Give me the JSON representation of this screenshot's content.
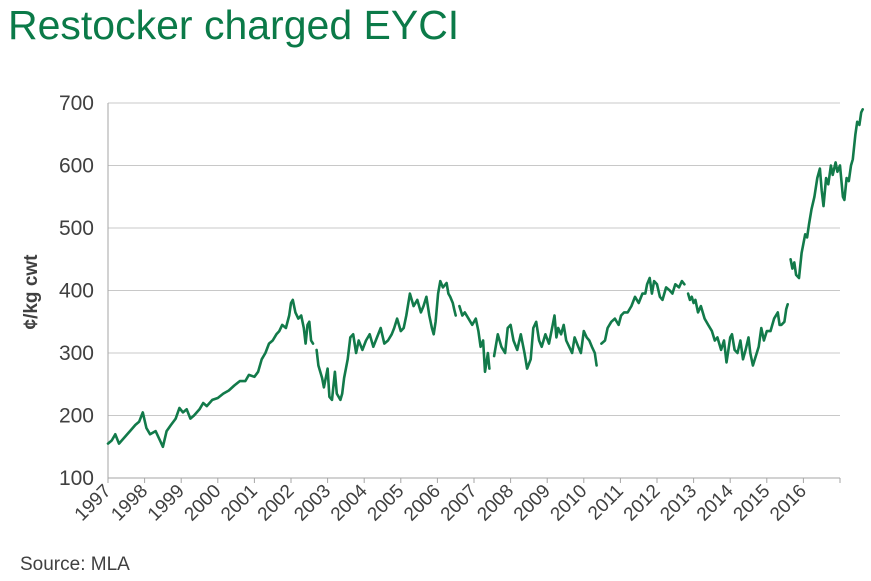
{
  "title": "Restocker charged EYCI",
  "source": "Source: MLA",
  "colors": {
    "series": "#127a4a",
    "title": "#0b7a48",
    "grid": "#c8c8c8",
    "axis": "#a6a6a6",
    "text": "#404040"
  },
  "chart_data": {
    "type": "line",
    "title": "Restocker charged EYCI",
    "xlabel": "",
    "ylabel": "¢/kg cwt",
    "ylim": [
      100,
      700
    ],
    "yticks": [
      100,
      200,
      300,
      400,
      500,
      600,
      700
    ],
    "xlim": [
      1997,
      2017
    ],
    "xtick_labels": [
      "1997",
      "1998",
      "1999",
      "2000",
      "2001",
      "2002",
      "2003",
      "2004",
      "2005",
      "2006",
      "2007",
      "2008",
      "2009",
      "2010",
      "2011",
      "2012",
      "2013",
      "2014",
      "2015",
      "2016"
    ],
    "grid": true,
    "legend": "none",
    "series": [
      {
        "segments": [
          [
            [
              1997.0,
              155
            ],
            [
              1997.1,
              160
            ],
            [
              1997.2,
              170
            ],
            [
              1997.3,
              155
            ],
            [
              1997.45,
              165
            ],
            [
              1997.6,
              175
            ],
            [
              1997.75,
              185
            ],
            [
              1997.85,
              190
            ],
            [
              1997.95,
              205
            ],
            [
              1998.05,
              180
            ],
            [
              1998.15,
              170
            ],
            [
              1998.3,
              175
            ],
            [
              1998.42,
              160
            ],
            [
              1998.5,
              150
            ],
            [
              1998.6,
              175
            ],
            [
              1998.72,
              185
            ],
            [
              1998.85,
              195
            ],
            [
              1998.95,
              212
            ],
            [
              1999.05,
              205
            ],
            [
              1999.15,
              210
            ],
            [
              1999.25,
              195
            ],
            [
              1999.35,
              200
            ],
            [
              1999.5,
              210
            ],
            [
              1999.6,
              220
            ],
            [
              1999.7,
              215
            ],
            [
              1999.85,
              225
            ],
            [
              2000.0,
              228
            ],
            [
              2000.15,
              235
            ],
            [
              2000.3,
              240
            ],
            [
              2000.45,
              248
            ],
            [
              2000.6,
              255
            ],
            [
              2000.75,
              255
            ],
            [
              2000.85,
              265
            ],
            [
              2001.0,
              262
            ],
            [
              2001.1,
              270
            ],
            [
              2001.2,
              290
            ],
            [
              2001.3,
              300
            ],
            [
              2001.4,
              315
            ],
            [
              2001.5,
              320
            ],
            [
              2001.6,
              330
            ],
            [
              2001.68,
              335
            ],
            [
              2001.76,
              345
            ],
            [
              2001.86,
              340
            ],
            [
              2001.95,
              360
            ],
            [
              2002.0,
              380
            ],
            [
              2002.05,
              385
            ],
            [
              2002.12,
              365
            ],
            [
              2002.2,
              355
            ],
            [
              2002.28,
              360
            ],
            [
              2002.35,
              340
            ],
            [
              2002.4,
              315
            ],
            [
              2002.45,
              345
            ],
            [
              2002.5,
              350
            ],
            [
              2002.55,
              320
            ],
            [
              2002.6,
              315
            ]
          ],
          [
            [
              2002.7,
              305
            ],
            [
              2002.75,
              280
            ],
            [
              2002.85,
              260
            ],
            [
              2002.9,
              245
            ],
            [
              2003.0,
              275
            ],
            [
              2003.05,
              230
            ],
            [
              2003.12,
              225
            ],
            [
              2003.2,
              270
            ],
            [
              2003.25,
              235
            ],
            [
              2003.35,
              225
            ],
            [
              2003.4,
              235
            ],
            [
              2003.45,
              260
            ],
            [
              2003.55,
              290
            ],
            [
              2003.62,
              325
            ],
            [
              2003.7,
              330
            ],
            [
              2003.78,
              300
            ],
            [
              2003.85,
              320
            ],
            [
              2003.95,
              305
            ],
            [
              2004.05,
              320
            ],
            [
              2004.15,
              330
            ],
            [
              2004.25,
              310
            ],
            [
              2004.35,
              325
            ],
            [
              2004.45,
              340
            ],
            [
              2004.55,
              315
            ],
            [
              2004.65,
              320
            ],
            [
              2004.75,
              330
            ],
            [
              2004.82,
              340
            ],
            [
              2004.9,
              355
            ],
            [
              2005.0,
              335
            ],
            [
              2005.08,
              340
            ],
            [
              2005.15,
              360
            ],
            [
              2005.25,
              395
            ],
            [
              2005.35,
              375
            ],
            [
              2005.45,
              385
            ],
            [
              2005.55,
              365
            ],
            [
              2005.62,
              375
            ],
            [
              2005.7,
              390
            ],
            [
              2005.78,
              360
            ],
            [
              2005.85,
              340
            ],
            [
              2005.9,
              330
            ],
            [
              2005.95,
              350
            ],
            [
              2006.02,
              395
            ],
            [
              2006.08,
              415
            ],
            [
              2006.15,
              405
            ],
            [
              2006.25,
              412
            ],
            [
              2006.3,
              395
            ],
            [
              2006.35,
              390
            ],
            [
              2006.42,
              380
            ],
            [
              2006.46,
              370
            ],
            [
              2006.5,
              360
            ]
          ],
          [
            [
              2006.6,
              375
            ],
            [
              2006.68,
              360
            ],
            [
              2006.75,
              365
            ],
            [
              2006.85,
              355
            ],
            [
              2006.95,
              345
            ],
            [
              2007.05,
              355
            ],
            [
              2007.12,
              335
            ],
            [
              2007.18,
              310
            ],
            [
              2007.25,
              320
            ],
            [
              2007.3,
              270
            ],
            [
              2007.38,
              300
            ],
            [
              2007.42,
              275
            ]
          ],
          [
            [
              2007.55,
              295
            ],
            [
              2007.65,
              330
            ],
            [
              2007.75,
              310
            ],
            [
              2007.85,
              300
            ],
            [
              2007.92,
              340
            ],
            [
              2008.0,
              345
            ],
            [
              2008.08,
              320
            ],
            [
              2008.18,
              305
            ],
            [
              2008.28,
              330
            ],
            [
              2008.38,
              300
            ],
            [
              2008.45,
              275
            ],
            [
              2008.55,
              290
            ],
            [
              2008.62,
              340
            ],
            [
              2008.7,
              350
            ],
            [
              2008.78,
              320
            ],
            [
              2008.85,
              310
            ],
            [
              2008.95,
              330
            ],
            [
              2009.05,
              315
            ],
            [
              2009.15,
              345
            ],
            [
              2009.2,
              360
            ],
            [
              2009.25,
              325
            ],
            [
              2009.3,
              340
            ],
            [
              2009.38,
              330
            ],
            [
              2009.45,
              345
            ],
            [
              2009.52,
              320
            ],
            [
              2009.6,
              310
            ],
            [
              2009.68,
              300
            ],
            [
              2009.75,
              325
            ],
            [
              2009.85,
              310
            ],
            [
              2009.92,
              300
            ],
            [
              2010.0,
              335
            ],
            [
              2010.08,
              325
            ],
            [
              2010.15,
              320
            ],
            [
              2010.22,
              310
            ],
            [
              2010.3,
              300
            ],
            [
              2010.35,
              280
            ]
          ],
          [
            [
              2010.48,
              315
            ],
            [
              2010.58,
              320
            ],
            [
              2010.65,
              340
            ],
            [
              2010.75,
              350
            ],
            [
              2010.85,
              355
            ],
            [
              2010.95,
              345
            ],
            [
              2011.02,
              360
            ],
            [
              2011.1,
              365
            ],
            [
              2011.2,
              365
            ],
            [
              2011.3,
              375
            ],
            [
              2011.4,
              390
            ],
            [
              2011.5,
              380
            ],
            [
              2011.6,
              395
            ],
            [
              2011.68,
              395
            ],
            [
              2011.73,
              410
            ],
            [
              2011.8,
              420
            ],
            [
              2011.86,
              395
            ],
            [
              2011.92,
              415
            ],
            [
              2012.0,
              410
            ],
            [
              2012.08,
              390
            ],
            [
              2012.15,
              385
            ],
            [
              2012.25,
              405
            ],
            [
              2012.35,
              400
            ],
            [
              2012.42,
              395
            ],
            [
              2012.5,
              410
            ],
            [
              2012.6,
              405
            ],
            [
              2012.68,
              415
            ],
            [
              2012.75,
              410
            ]
          ],
          [
            [
              2012.85,
              395
            ],
            [
              2012.9,
              385
            ],
            [
              2012.95,
              390
            ],
            [
              2013.0,
              380
            ],
            [
              2013.05,
              385
            ],
            [
              2013.12,
              365
            ],
            [
              2013.2,
              375
            ],
            [
              2013.3,
              355
            ],
            [
              2013.4,
              345
            ],
            [
              2013.5,
              335
            ],
            [
              2013.58,
              320
            ],
            [
              2013.65,
              325
            ],
            [
              2013.75,
              305
            ],
            [
              2013.83,
              320
            ],
            [
              2013.9,
              285
            ],
            [
              2013.95,
              305
            ],
            [
              2014.0,
              325
            ],
            [
              2014.05,
              330
            ],
            [
              2014.12,
              305
            ],
            [
              2014.2,
              300
            ],
            [
              2014.28,
              320
            ],
            [
              2014.35,
              290
            ],
            [
              2014.42,
              305
            ],
            [
              2014.5,
              325
            ],
            [
              2014.55,
              300
            ],
            [
              2014.62,
              280
            ],
            [
              2014.7,
              295
            ],
            [
              2014.78,
              310
            ],
            [
              2014.85,
              340
            ],
            [
              2014.92,
              320
            ],
            [
              2015.0,
              335
            ],
            [
              2015.1,
              335
            ],
            [
              2015.2,
              355
            ],
            [
              2015.3,
              365
            ],
            [
              2015.35,
              345
            ],
            [
              2015.4,
              345
            ],
            [
              2015.48,
              350
            ],
            [
              2015.53,
              370
            ],
            [
              2015.57,
              378
            ]
          ],
          [
            [
              2015.65,
              450
            ],
            [
              2015.7,
              435
            ],
            [
              2015.75,
              445
            ],
            [
              2015.8,
              425
            ],
            [
              2015.88,
              420
            ],
            [
              2015.95,
              460
            ],
            [
              2016.0,
              475
            ],
            [
              2016.05,
              490
            ],
            [
              2016.1,
              485
            ],
            [
              2016.15,
              505
            ],
            [
              2016.22,
              530
            ],
            [
              2016.3,
              550
            ],
            [
              2016.38,
              580
            ],
            [
              2016.45,
              595
            ],
            [
              2016.5,
              560
            ],
            [
              2016.55,
              535
            ],
            [
              2016.62,
              580
            ],
            [
              2016.68,
              570
            ],
            [
              2016.75,
              600
            ],
            [
              2016.8,
              585
            ],
            [
              2016.88,
              605
            ],
            [
              2016.93,
              590
            ],
            [
              2017.0,
              600
            ],
            [
              2017.08,
              550
            ],
            [
              2017.12,
              545
            ],
            [
              2017.18,
              580
            ],
            [
              2017.24,
              575
            ],
            [
              2017.3,
              600
            ],
            [
              2017.35,
              610
            ],
            [
              2017.42,
              650
            ],
            [
              2017.47,
              670
            ],
            [
              2017.53,
              665
            ],
            [
              2017.58,
              685
            ],
            [
              2017.62,
              690
            ]
          ]
        ]
      }
    ]
  }
}
